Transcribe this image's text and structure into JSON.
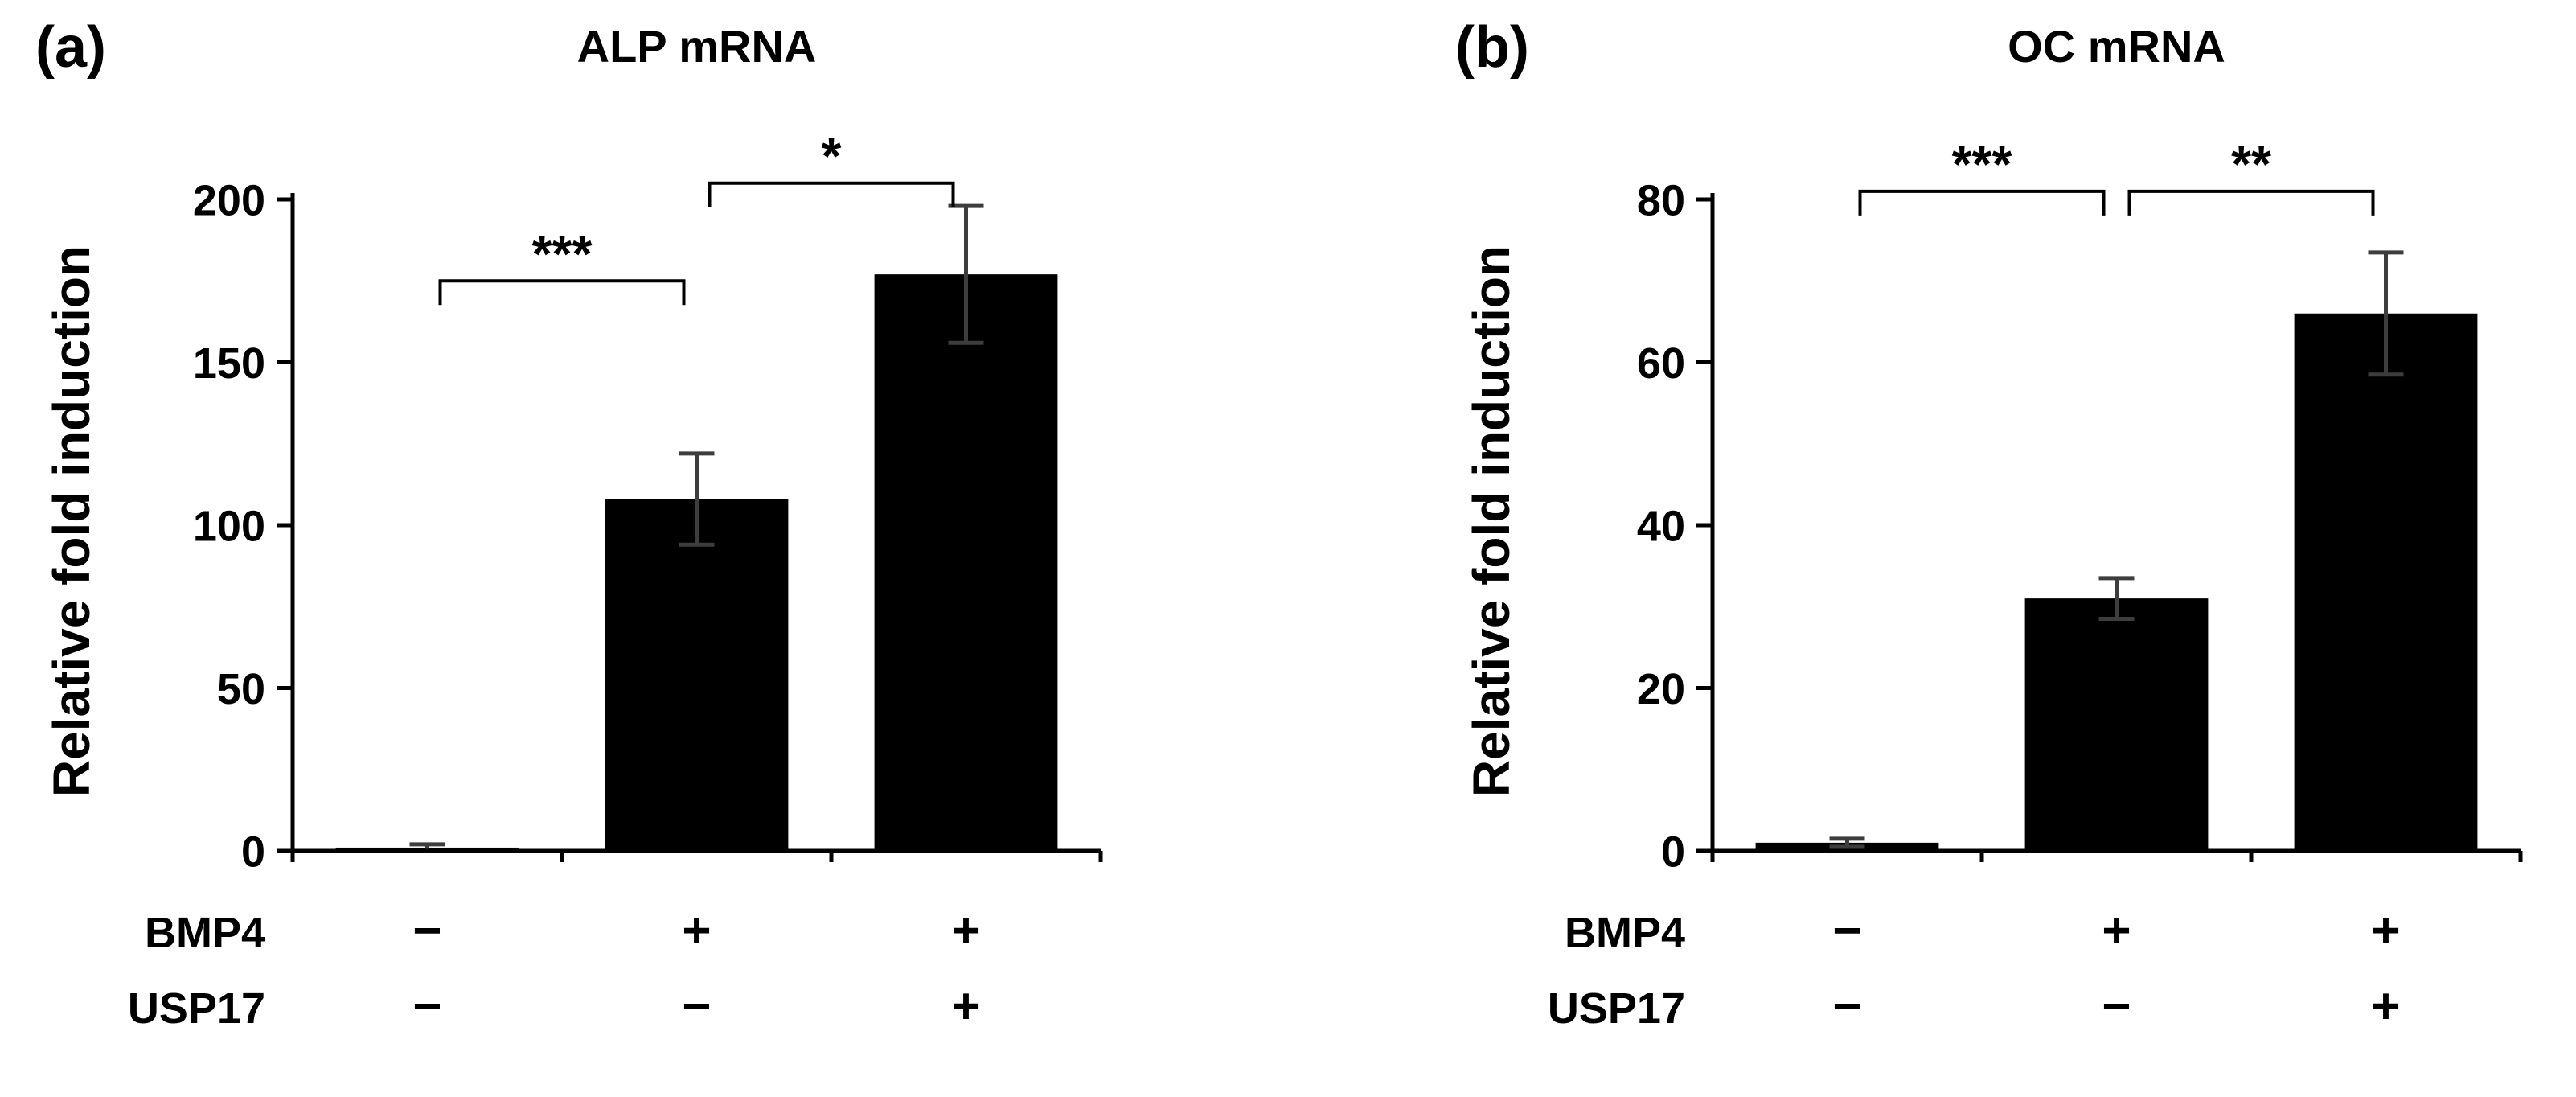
{
  "colors": {
    "bar": "#000000",
    "error_bar": "#3d3d3d",
    "axis": "#000000",
    "text": "#000000",
    "background": "#ffffff"
  },
  "chart_data": [
    {
      "type": "bar",
      "panel_label": "(a)",
      "title": "ALP mRNA",
      "xlabel": "",
      "ylabel": "Relative fold induction",
      "ylim": [
        0,
        200
      ],
      "yticks": [
        0,
        50,
        100,
        150,
        200
      ],
      "grid": false,
      "legend": false,
      "categories": [
        "BMP4 −, USP17 −",
        "BMP4 +, USP17 −",
        "BMP4 +, USP17 +"
      ],
      "values": [
        1,
        108,
        177
      ],
      "errors": [
        1,
        14,
        21
      ],
      "condition_rows": [
        {
          "label": "BMP4",
          "values": [
            "−",
            "+",
            "+"
          ]
        },
        {
          "label": "USP17",
          "values": [
            "−",
            "−",
            "+"
          ]
        }
      ],
      "significance": [
        {
          "from": 0,
          "to": 1,
          "label": "***",
          "level": 175
        },
        {
          "from": 1,
          "to": 2,
          "label": "*",
          "level": 205
        }
      ]
    },
    {
      "type": "bar",
      "panel_label": "(b)",
      "title": "OC mRNA",
      "xlabel": "",
      "ylabel": "Relative fold induction",
      "ylim": [
        0,
        80
      ],
      "yticks": [
        0,
        20,
        40,
        60,
        80
      ],
      "grid": false,
      "legend": false,
      "categories": [
        "BMP4 −, USP17 −",
        "BMP4 +, USP17 −",
        "BMP4 +, USP17 +"
      ],
      "values": [
        1,
        31,
        66
      ],
      "errors": [
        0.5,
        2.5,
        7.5
      ],
      "condition_rows": [
        {
          "label": "BMP4",
          "values": [
            "−",
            "+",
            "+"
          ]
        },
        {
          "label": "USP17",
          "values": [
            "−",
            "−",
            "+"
          ]
        }
      ],
      "significance": [
        {
          "from": 0,
          "to": 1,
          "label": "***",
          "level": 81
        },
        {
          "from": 1,
          "to": 2,
          "label": "**",
          "level": 81
        }
      ]
    }
  ]
}
